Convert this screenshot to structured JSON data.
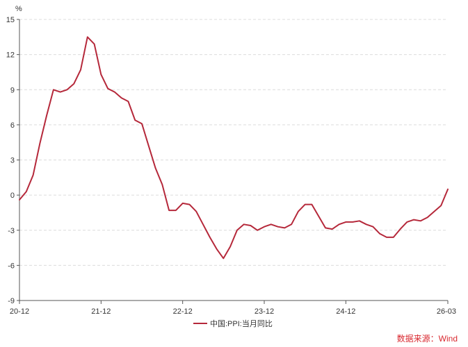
{
  "chart_data": {
    "type": "line",
    "ylabel": "%",
    "ylim": [
      -9,
      15
    ],
    "yticks": [
      15,
      12,
      9,
      6,
      3,
      0,
      -3,
      -6,
      -9
    ],
    "xticks": [
      "20-12",
      "21-12",
      "22-12",
      "23-12",
      "24-12",
      "26-03"
    ],
    "grid": true,
    "legend_position": "bottom",
    "series": [
      {
        "name": "中国:PPI:当月同比",
        "color": "#b5283a",
        "x": [
          "20-12",
          "21-01",
          "21-02",
          "21-03",
          "21-04",
          "21-05",
          "21-06",
          "21-07",
          "21-08",
          "21-09",
          "21-10",
          "21-11",
          "21-12",
          "22-01",
          "22-02",
          "22-03",
          "22-04",
          "22-05",
          "22-06",
          "22-07",
          "22-08",
          "22-09",
          "22-10",
          "22-11",
          "22-12",
          "23-01",
          "23-02",
          "23-03",
          "23-04",
          "23-05",
          "23-06",
          "23-07",
          "23-08",
          "23-09",
          "23-10",
          "23-11",
          "23-12",
          "24-01",
          "24-02",
          "24-03",
          "24-04",
          "24-05",
          "24-06",
          "24-07",
          "24-08",
          "24-09",
          "24-10",
          "24-11",
          "24-12",
          "25-01",
          "25-02",
          "25-03",
          "25-04",
          "25-05",
          "25-06",
          "25-07",
          "25-08",
          "25-09",
          "25-10",
          "25-11",
          "25-12",
          "26-01",
          "26-02",
          "26-03"
        ],
        "values": [
          -0.4,
          0.3,
          1.7,
          4.4,
          6.8,
          9.0,
          8.8,
          9.0,
          9.5,
          10.7,
          13.5,
          12.9,
          10.3,
          9.1,
          8.8,
          8.3,
          8.0,
          6.4,
          6.1,
          4.2,
          2.3,
          0.9,
          -1.3,
          -1.3,
          -0.7,
          -0.8,
          -1.4,
          -2.5,
          -3.6,
          -4.6,
          -5.4,
          -4.4,
          -3.0,
          -2.5,
          -2.6,
          -3.0,
          -2.7,
          -2.5,
          -2.7,
          -2.8,
          -2.5,
          -1.4,
          -0.8,
          -0.8,
          -1.8,
          -2.8,
          -2.9,
          -2.5,
          -2.3,
          -2.3,
          -2.2,
          -2.5,
          -2.7,
          -3.3,
          -3.6,
          -3.6,
          -2.9,
          -2.3,
          -2.1,
          -2.2,
          -1.9,
          -1.4,
          -0.9,
          0.5
        ]
      }
    ]
  },
  "source": "数据来源：Wind"
}
